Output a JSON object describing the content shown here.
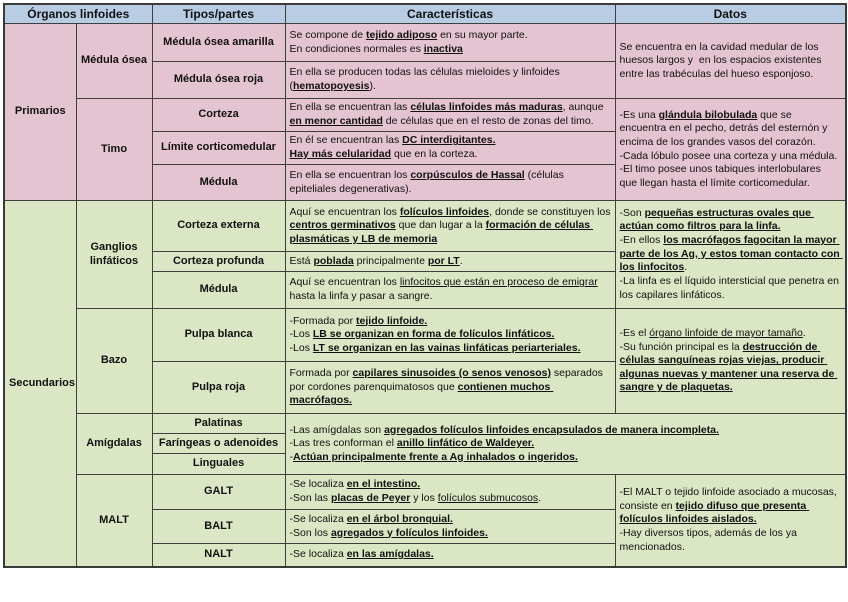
{
  "colors": {
    "header_bg": "#b8cce4",
    "primarios_bg": "#e5c4d2",
    "secundarios_bg": "#dbe6c4",
    "border": "#3f3f3f"
  },
  "headers": {
    "organos": "Órganos linfoides",
    "tipos": "Tipos/partes",
    "caracteristicas": "Características",
    "datos": "Datos"
  },
  "sections": {
    "primarios": "Primarios",
    "secundarios": "Secundarios"
  },
  "organs": {
    "medula_osea": "Médula ósea",
    "timo": "Timo",
    "ganglios": "Ganglios linfáticos",
    "bazo": "Bazo",
    "amigdalas": "Amígdalas",
    "malt": "MALT"
  },
  "types": {
    "medula_amarilla": "Médula ósea amarilla",
    "medula_roja": "Médula ósea roja",
    "corteza": "Corteza",
    "limite": "Límite corticomedular",
    "medula_timo": "Médula",
    "corteza_externa": "Corteza externa",
    "corteza_profunda": "Corteza profunda",
    "medula_ganglio": "Médula",
    "pulpa_blanca": "Pulpa blanca",
    "pulpa_roja": "Pulpa roja",
    "palatinas": "Palatinas",
    "faringeas": "Faríngeas o adenoides",
    "linguales": "Linguales",
    "galt": "GALT",
    "balt": "BALT",
    "nalt": "NALT"
  },
  "cells": {
    "car_medula_amarilla": [
      {
        "t": "Se compone de "
      },
      {
        "t": "tejido adiposo",
        "b": true,
        "u": true
      },
      {
        "t": " en su mayor parte.\nEn condiciones normales es "
      },
      {
        "t": "inactiva",
        "b": true,
        "u": true
      }
    ],
    "car_medula_roja": [
      {
        "t": "En ella se producen todas las células mieloides y linfoides ("
      },
      {
        "t": "hematopoyesis",
        "b": true,
        "u": true
      },
      {
        "t": ")."
      }
    ],
    "car_corteza": [
      {
        "t": "En ella se encuentran las "
      },
      {
        "t": "células linfoides más maduras",
        "b": true,
        "u": true
      },
      {
        "t": ", aunque "
      },
      {
        "t": "en menor cantidad",
        "b": true,
        "u": true
      },
      {
        "t": " de células que en el resto de zonas del timo."
      }
    ],
    "car_limite": [
      {
        "t": "En él se encuentran las "
      },
      {
        "t": "DC interdigitantes.",
        "b": true,
        "u": true
      },
      {
        "t": "\n"
      },
      {
        "t": "Hay más celularidad",
        "b": true,
        "u": true
      },
      {
        "t": " que en la corteza."
      }
    ],
    "car_medula_timo": [
      {
        "t": "En ella se encuentran los "
      },
      {
        "t": "corpúsculos de Hassal",
        "b": true,
        "u": true
      },
      {
        "t": " (células epiteliales degenerativas)."
      }
    ],
    "datos_medula_osea": [
      {
        "t": "Se encuentra en la cavidad medular de los huesos largos y  en los espacios existentes entre las trabéculas del hueso esponjoso."
      }
    ],
    "datos_timo": [
      {
        "t": "-Es una "
      },
      {
        "t": "glándula bilobulada",
        "b": true,
        "u": true
      },
      {
        "t": " que se encuentra en el pecho, detrás del esternón y encima de los grandes vasos del corazón.\n-Cada lóbulo posee una corteza y una médula.\n-El timo posee unos tabiques interlobulares que llegan hasta el límite corticomedular."
      }
    ],
    "car_corteza_externa": [
      {
        "t": "Aquí se encuentran los "
      },
      {
        "t": "folículos linfoides",
        "b": true,
        "u": true
      },
      {
        "t": ", donde se constituyen los "
      },
      {
        "t": "centros germinativos",
        "b": true,
        "u": true
      },
      {
        "t": " que dan lugar a la "
      },
      {
        "t": "formación de células plasmáticas y LB de memoria",
        "b": true,
        "u": true
      }
    ],
    "car_corteza_profunda": [
      {
        "t": "Está "
      },
      {
        "t": "poblada",
        "b": true,
        "u": true
      },
      {
        "t": " principalmente "
      },
      {
        "t": "por LT",
        "b": true,
        "u": true
      },
      {
        "t": "."
      }
    ],
    "car_medula_ganglio": [
      {
        "t": "Aquí se encuentran los "
      },
      {
        "t": "linfocitos que están en proceso de emigrar",
        "u": true
      },
      {
        "t": " hasta la linfa y pasar a sangre."
      }
    ],
    "datos_ganglios": [
      {
        "t": "-Son "
      },
      {
        "t": "pequeñas estructuras ovales que actúan como filtros para la linfa.",
        "b": true,
        "u": true
      },
      {
        "t": "\n-En ellos "
      },
      {
        "t": "los macrófagos fagocitan la mayor parte de los Ag, y estos toman contacto con los linfocitos",
        "b": true,
        "u": true
      },
      {
        "t": ".\n-La linfa es el líquido intersticial que penetra en los capilares linfáticos."
      }
    ],
    "car_pulpa_blanca": [
      {
        "t": "-Formada por "
      },
      {
        "t": "tejido linfoide.",
        "b": true,
        "u": true
      },
      {
        "t": "\n-Los "
      },
      {
        "t": "LB se organizan en forma de folículos linfáticos.",
        "b": true,
        "u": true
      },
      {
        "t": "\n-Los "
      },
      {
        "t": "LT se organizan en las vainas linfáticas periarteriales.",
        "b": true,
        "u": true
      }
    ],
    "car_pulpa_roja": [
      {
        "t": "Formada por "
      },
      {
        "t": "capilares sinusoides (o senos venosos)",
        "b": true,
        "u": true
      },
      {
        "t": " separados por cordones parenquimatosos que "
      },
      {
        "t": "contienen muchos macrófagos.",
        "b": true,
        "u": true
      }
    ],
    "datos_bazo": [
      {
        "t": "-Es el "
      },
      {
        "t": "órgano linfoide de mayor tamaño",
        "u": true
      },
      {
        "t": ".\n-Su función principal es la "
      },
      {
        "t": "destrucción de células sanguíneas rojas viejas, producir algunas nuevas y mantener una reserva de sangre y de plaquetas.",
        "b": true,
        "u": true
      }
    ],
    "car_amigdalas": [
      {
        "t": "-Las amígdalas son "
      },
      {
        "t": "agregados folículos linfoides encapsulados de manera incompleta.",
        "b": true,
        "u": true
      },
      {
        "t": "\n-Las tres conforman el "
      },
      {
        "t": "anillo linfático de Waldeyer.",
        "b": true,
        "u": true
      },
      {
        "t": "\n-"
      },
      {
        "t": "Actúan principalmente frente a Ag inhalados o ingeridos.",
        "b": true,
        "u": true
      }
    ],
    "car_galt": [
      {
        "t": "-Se localiza "
      },
      {
        "t": "en el intestino.",
        "b": true,
        "u": true
      },
      {
        "t": "\n-Son las "
      },
      {
        "t": "placas de Peyer",
        "b": true,
        "u": true
      },
      {
        "t": " y los "
      },
      {
        "t": "folículos submucosos",
        "u": true
      },
      {
        "t": "."
      }
    ],
    "car_balt": [
      {
        "t": "-Se localiza "
      },
      {
        "t": "en el árbol bronquial.",
        "b": true,
        "u": true
      },
      {
        "t": "\n-Son los "
      },
      {
        "t": "agregados y folículos linfoides.",
        "b": true,
        "u": true
      }
    ],
    "car_nalt": [
      {
        "t": "-Se localiza "
      },
      {
        "t": "en las amígdalas.",
        "b": true,
        "u": true
      }
    ],
    "datos_malt": [
      {
        "t": "-El MALT o tejido linfoide asociado a mucosas, consiste en "
      },
      {
        "t": "tejido difuso que presenta folículos linfoides aislados.",
        "b": true,
        "u": true
      },
      {
        "t": "\n-Hay diversos tipos, además de los ya mencionados."
      }
    ]
  }
}
